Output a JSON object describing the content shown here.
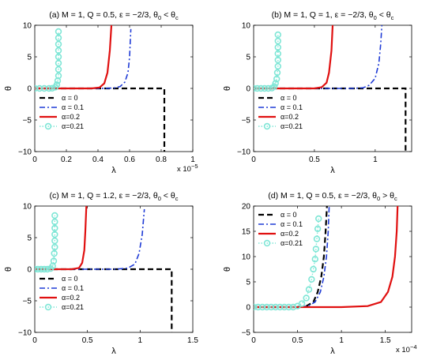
{
  "chart_data": [
    {
      "type": "line",
      "title": "(a) M = 1, Q = 0.5, ε = −2/3, θ₀ < θᴄ",
      "title_parts": {
        "lead": "(a) M = 1, Q = 0.5, ε = −2/3, θ",
        "sub0": "0",
        "mid": " < θ",
        "subc": "c"
      },
      "xlabel": "λ",
      "ylabel": "θ",
      "xlim": [
        0,
        1
      ],
      "ylim": [
        -10,
        10
      ],
      "xticks": [
        0,
        0.2,
        0.4,
        0.6,
        0.8,
        1
      ],
      "xticklabels": [
        "0",
        "0.2",
        "0.4",
        "0.6",
        "0.8",
        "1"
      ],
      "yticks": [
        -10,
        -5,
        0,
        5,
        10
      ],
      "yticklabels": [
        "−10",
        "−5",
        "0",
        "5",
        "10"
      ],
      "x_multiplier": {
        "base": "x 10",
        "exp": "−5"
      },
      "legend": "bottom-left",
      "series": [
        {
          "name": "α = 0",
          "style": "black-dash",
          "points": [
            [
              0,
              0
            ],
            [
              0.82,
              0
            ],
            [
              0.82,
              -10
            ]
          ]
        },
        {
          "name": "α = 0.1",
          "style": "blue-dashdot",
          "points": [
            [
              0,
              0
            ],
            [
              0.42,
              0
            ],
            [
              0.5,
              0.06
            ],
            [
              0.54,
              0.3
            ],
            [
              0.57,
              1
            ],
            [
              0.59,
              2.5
            ],
            [
              0.6,
              5
            ],
            [
              0.608,
              9.4
            ]
          ]
        },
        {
          "name": "α=0.2",
          "style": "red-solid",
          "points": [
            [
              0,
              0
            ],
            [
              0.36,
              0
            ],
            [
              0.41,
              0.15
            ],
            [
              0.44,
              0.8
            ],
            [
              0.46,
              2.5
            ],
            [
              0.475,
              6
            ],
            [
              0.485,
              10
            ]
          ]
        },
        {
          "name": "α=0.21",
          "style": "cyan-circles",
          "points": [
            [
              0,
              0
            ],
            [
              0.03,
              0
            ],
            [
              0.06,
              0
            ],
            [
              0.09,
              0
            ],
            [
              0.11,
              0.02
            ],
            [
              0.13,
              0.2
            ],
            [
              0.14,
              0.6
            ],
            [
              0.145,
              1.2
            ],
            [
              0.15,
              2
            ],
            [
              0.15,
              3
            ],
            [
              0.15,
              4
            ],
            [
              0.15,
              5
            ],
            [
              0.15,
              6
            ],
            [
              0.15,
              7
            ],
            [
              0.15,
              8
            ],
            [
              0.15,
              9
            ]
          ]
        }
      ]
    },
    {
      "type": "line",
      "title": "(b) M = 1, Q = 1, ε = −2/3, θ₀ < θᴄ",
      "title_parts": {
        "lead": "(b) M = 1, Q = 1, ε = −2/3, θ",
        "sub0": "0",
        "mid": " < θ",
        "subc": "c"
      },
      "xlabel": "λ",
      "ylabel": "θ",
      "xlim": [
        0,
        1.3
      ],
      "ylim": [
        -10,
        10
      ],
      "xticks": [
        0,
        0.5,
        1
      ],
      "xticklabels": [
        "0",
        "0.5",
        "1"
      ],
      "yticks": [
        -10,
        -5,
        0,
        5,
        10
      ],
      "yticklabels": [
        "−10",
        "−5",
        "0",
        "5",
        "10"
      ],
      "legend": "bottom-left",
      "series": [
        {
          "name": "α = 0",
          "style": "black-dash",
          "points": [
            [
              0,
              0
            ],
            [
              1.25,
              0
            ],
            [
              1.25,
              -10
            ]
          ]
        },
        {
          "name": "α = 0.1",
          "style": "blue-dashdot",
          "points": [
            [
              0,
              0
            ],
            [
              0.8,
              0
            ],
            [
              0.9,
              0.1
            ],
            [
              0.95,
              0.5
            ],
            [
              1.0,
              1.6
            ],
            [
              1.03,
              4
            ],
            [
              1.045,
              7
            ],
            [
              1.055,
              10
            ]
          ]
        },
        {
          "name": "α=0.2",
          "style": "red-solid",
          "points": [
            [
              0,
              0
            ],
            [
              0.5,
              0
            ],
            [
              0.56,
              0.2
            ],
            [
              0.6,
              0.9
            ],
            [
              0.62,
              2.5
            ],
            [
              0.64,
              6
            ],
            [
              0.65,
              10
            ]
          ]
        },
        {
          "name": "α=0.21",
          "style": "cyan-circles",
          "points": [
            [
              0,
              0
            ],
            [
              0.03,
              0
            ],
            [
              0.06,
              0
            ],
            [
              0.09,
              0
            ],
            [
              0.12,
              0
            ],
            [
              0.15,
              0.05
            ],
            [
              0.17,
              0.3
            ],
            [
              0.18,
              0.8
            ],
            [
              0.19,
              1.5
            ],
            [
              0.195,
              2.5
            ],
            [
              0.2,
              3.5
            ],
            [
              0.2,
              4.5
            ],
            [
              0.2,
              5.5
            ],
            [
              0.2,
              6.5
            ],
            [
              0.2,
              7.5
            ],
            [
              0.2,
              8.5
            ]
          ]
        }
      ]
    },
    {
      "type": "line",
      "title": "(c) M = 1, Q = 1.2, ε = −2/3, θ₀ < θᴄ",
      "title_parts": {
        "lead": "(c) M = 1, Q = 1.2, ε = −2/3, θ",
        "sub0": "0",
        "mid": " < θ",
        "subc": "c"
      },
      "xlabel": "λ",
      "ylabel": "θ",
      "xlim": [
        0,
        1.5
      ],
      "ylim": [
        -10,
        10
      ],
      "xticks": [
        0,
        0.5,
        1,
        1.5
      ],
      "xticklabels": [
        "0",
        "0.5",
        "1",
        "1.5"
      ],
      "yticks": [
        -10,
        -5,
        0,
        5,
        10
      ],
      "yticklabels": [
        "−10",
        "−5",
        "0",
        "5",
        "10"
      ],
      "legend": "bottom-left",
      "series": [
        {
          "name": "α = 0",
          "style": "black-dash",
          "points": [
            [
              0,
              0
            ],
            [
              1.3,
              0
            ],
            [
              1.3,
              -10
            ]
          ]
        },
        {
          "name": "α = 0.1",
          "style": "blue-dashdot",
          "points": [
            [
              0,
              0
            ],
            [
              0.75,
              0
            ],
            [
              0.88,
              0.15
            ],
            [
              0.95,
              0.8
            ],
            [
              0.99,
              2.5
            ],
            [
              1.02,
              5.5
            ],
            [
              1.04,
              9.5
            ]
          ]
        },
        {
          "name": "α=0.2",
          "style": "red-solid",
          "points": [
            [
              0,
              0
            ],
            [
              0.35,
              0
            ],
            [
              0.42,
              0.2
            ],
            [
              0.45,
              1
            ],
            [
              0.47,
              3
            ],
            [
              0.48,
              6
            ],
            [
              0.49,
              10
            ]
          ]
        },
        {
          "name": "α=0.21",
          "style": "cyan-circles",
          "points": [
            [
              0,
              0
            ],
            [
              0.03,
              0
            ],
            [
              0.06,
              0
            ],
            [
              0.09,
              0
            ],
            [
              0.12,
              0
            ],
            [
              0.15,
              0.1
            ],
            [
              0.17,
              0.5
            ],
            [
              0.18,
              1.3
            ],
            [
              0.185,
              2.5
            ],
            [
              0.19,
              3.5
            ],
            [
              0.19,
              4.5
            ],
            [
              0.19,
              5.5
            ],
            [
              0.19,
              6.5
            ],
            [
              0.19,
              7.5
            ],
            [
              0.19,
              8.5
            ]
          ]
        }
      ]
    },
    {
      "type": "line",
      "title": "(d) M = 1, Q = 0.5, ε = −2/3, θ₀ > θᴄ",
      "title_parts": {
        "lead": "(d) M = 1, Q = 0.5, ε = −2/3, θ",
        "sub0": "0",
        "mid": " > θ",
        "subc": "c"
      },
      "xlabel": "λ",
      "ylabel": "θ",
      "xlim": [
        0,
        1.8
      ],
      "ylim": [
        -5,
        20
      ],
      "xticks": [
        0,
        0.5,
        1,
        1.5
      ],
      "xticklabels": [
        "0",
        "0.5",
        "1",
        "1.5"
      ],
      "yticks": [
        -5,
        0,
        5,
        10,
        15,
        20
      ],
      "yticklabels": [
        "−5",
        "0",
        "5",
        "10",
        "15",
        "20"
      ],
      "x_multiplier": {
        "base": "x 10",
        "exp": "−4"
      },
      "legend": "top-left",
      "series": [
        {
          "name": "α = 0",
          "style": "black-dash",
          "points": [
            [
              0,
              0
            ],
            [
              0.5,
              0
            ],
            [
              0.6,
              0.2
            ],
            [
              0.68,
              1
            ],
            [
              0.73,
              3
            ],
            [
              0.77,
              6
            ],
            [
              0.8,
              10
            ],
            [
              0.82,
              15
            ],
            [
              0.835,
              20
            ]
          ]
        },
        {
          "name": "α = 0.1",
          "style": "blue-dashdot",
          "points": [
            [
              0,
              0
            ],
            [
              0.52,
              0
            ],
            [
              0.62,
              0.2
            ],
            [
              0.7,
              1
            ],
            [
              0.76,
              3
            ],
            [
              0.8,
              6
            ],
            [
              0.83,
              10
            ],
            [
              0.85,
              15
            ],
            [
              0.86,
              20
            ]
          ]
        },
        {
          "name": "α=0.2",
          "style": "red-solid",
          "points": [
            [
              0,
              0
            ],
            [
              1.0,
              0
            ],
            [
              1.3,
              0.2
            ],
            [
              1.45,
              1
            ],
            [
              1.53,
              3
            ],
            [
              1.58,
              6
            ],
            [
              1.61,
              10
            ],
            [
              1.63,
              15
            ],
            [
              1.64,
              20
            ]
          ]
        },
        {
          "name": "α=0.21",
          "style": "cyan-circles",
          "points": [
            [
              0,
              0
            ],
            [
              0.05,
              0
            ],
            [
              0.1,
              0
            ],
            [
              0.15,
              0
            ],
            [
              0.2,
              0
            ],
            [
              0.25,
              0
            ],
            [
              0.3,
              0
            ],
            [
              0.35,
              0
            ],
            [
              0.4,
              0
            ],
            [
              0.45,
              0
            ],
            [
              0.5,
              0.2
            ],
            [
              0.55,
              0.7
            ],
            [
              0.6,
              1.8
            ],
            [
              0.63,
              3.5
            ],
            [
              0.66,
              5.5
            ],
            [
              0.68,
              7.5
            ],
            [
              0.7,
              9.5
            ],
            [
              0.71,
              11.5
            ],
            [
              0.72,
              13.5
            ],
            [
              0.73,
              15.5
            ],
            [
              0.74,
              17.5
            ]
          ]
        }
      ]
    }
  ]
}
